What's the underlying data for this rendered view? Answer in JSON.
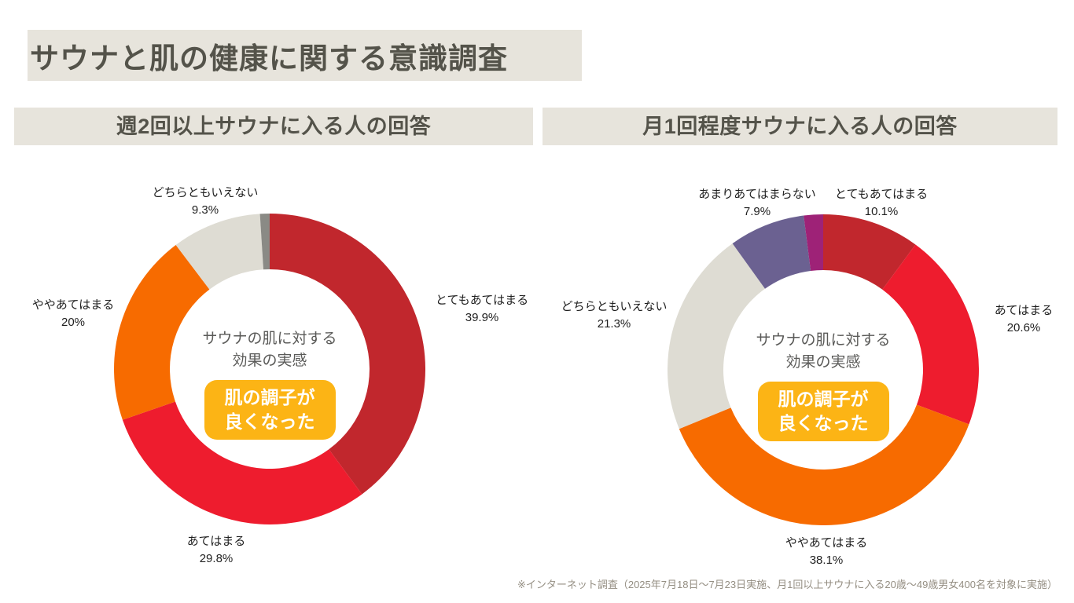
{
  "page": {
    "title": "サウナと肌の健康に関する意識調査",
    "footnote": "※インターネット調査（2025年7月18日〜7月23日実施、月1回以上サウナに入る20歳〜49歳男女400名を対象に実施）"
  },
  "colors": {
    "banner_bg": "#E7E4DC",
    "title_text": "#54534A",
    "badge_bg": "#FCB415",
    "badge_text": "#FFFFFF",
    "footnote_text": "#948E82"
  },
  "chart_data": [
    {
      "type": "donut",
      "title": "週2回以上サウナに入る人の回答",
      "center_caption": "サウナの肌に対する\n効果の実感",
      "center_badge": "肌の調子が\n良くなった",
      "legend_position": "around",
      "segments": [
        {
          "label": "とてもあてはまる",
          "pct": "39.9%",
          "value": 39.9,
          "color": "#C1272D"
        },
        {
          "label": "あてはまる",
          "pct": "29.8%",
          "value": 29.8,
          "color": "#EE1C2E"
        },
        {
          "label": "ややあてはまる",
          "pct": "20%",
          "value": 20.0,
          "color": "#F76B00"
        },
        {
          "label": "どちらともいえない",
          "pct": "9.3%",
          "value": 9.3,
          "color": "#DEDCD3"
        },
        {
          "label": "",
          "pct": "",
          "value": 1.0,
          "color": "#8A8A85"
        }
      ]
    },
    {
      "type": "donut",
      "title": "月1回程度サウナに入る人の回答",
      "center_caption": "サウナの肌に対する\n効果の実感",
      "center_badge": "肌の調子が\n良くなった",
      "legend_position": "around",
      "segments": [
        {
          "label": "とてもあてはまる",
          "pct": "10.1%",
          "value": 10.1,
          "color": "#C1272D"
        },
        {
          "label": "あてはまる",
          "pct": "20.6%",
          "value": 20.6,
          "color": "#EE1C2E"
        },
        {
          "label": "ややあてはまる",
          "pct": "38.1%",
          "value": 38.1,
          "color": "#F76B00"
        },
        {
          "label": "どちらともいえない",
          "pct": "21.3%",
          "value": 21.3,
          "color": "#DEDCD3"
        },
        {
          "label": "あまりあてはまらない",
          "pct": "7.9%",
          "value": 7.9,
          "color": "#6B6191"
        },
        {
          "label": "",
          "pct": "",
          "value": 2.0,
          "color": "#9E2277"
        }
      ]
    }
  ]
}
